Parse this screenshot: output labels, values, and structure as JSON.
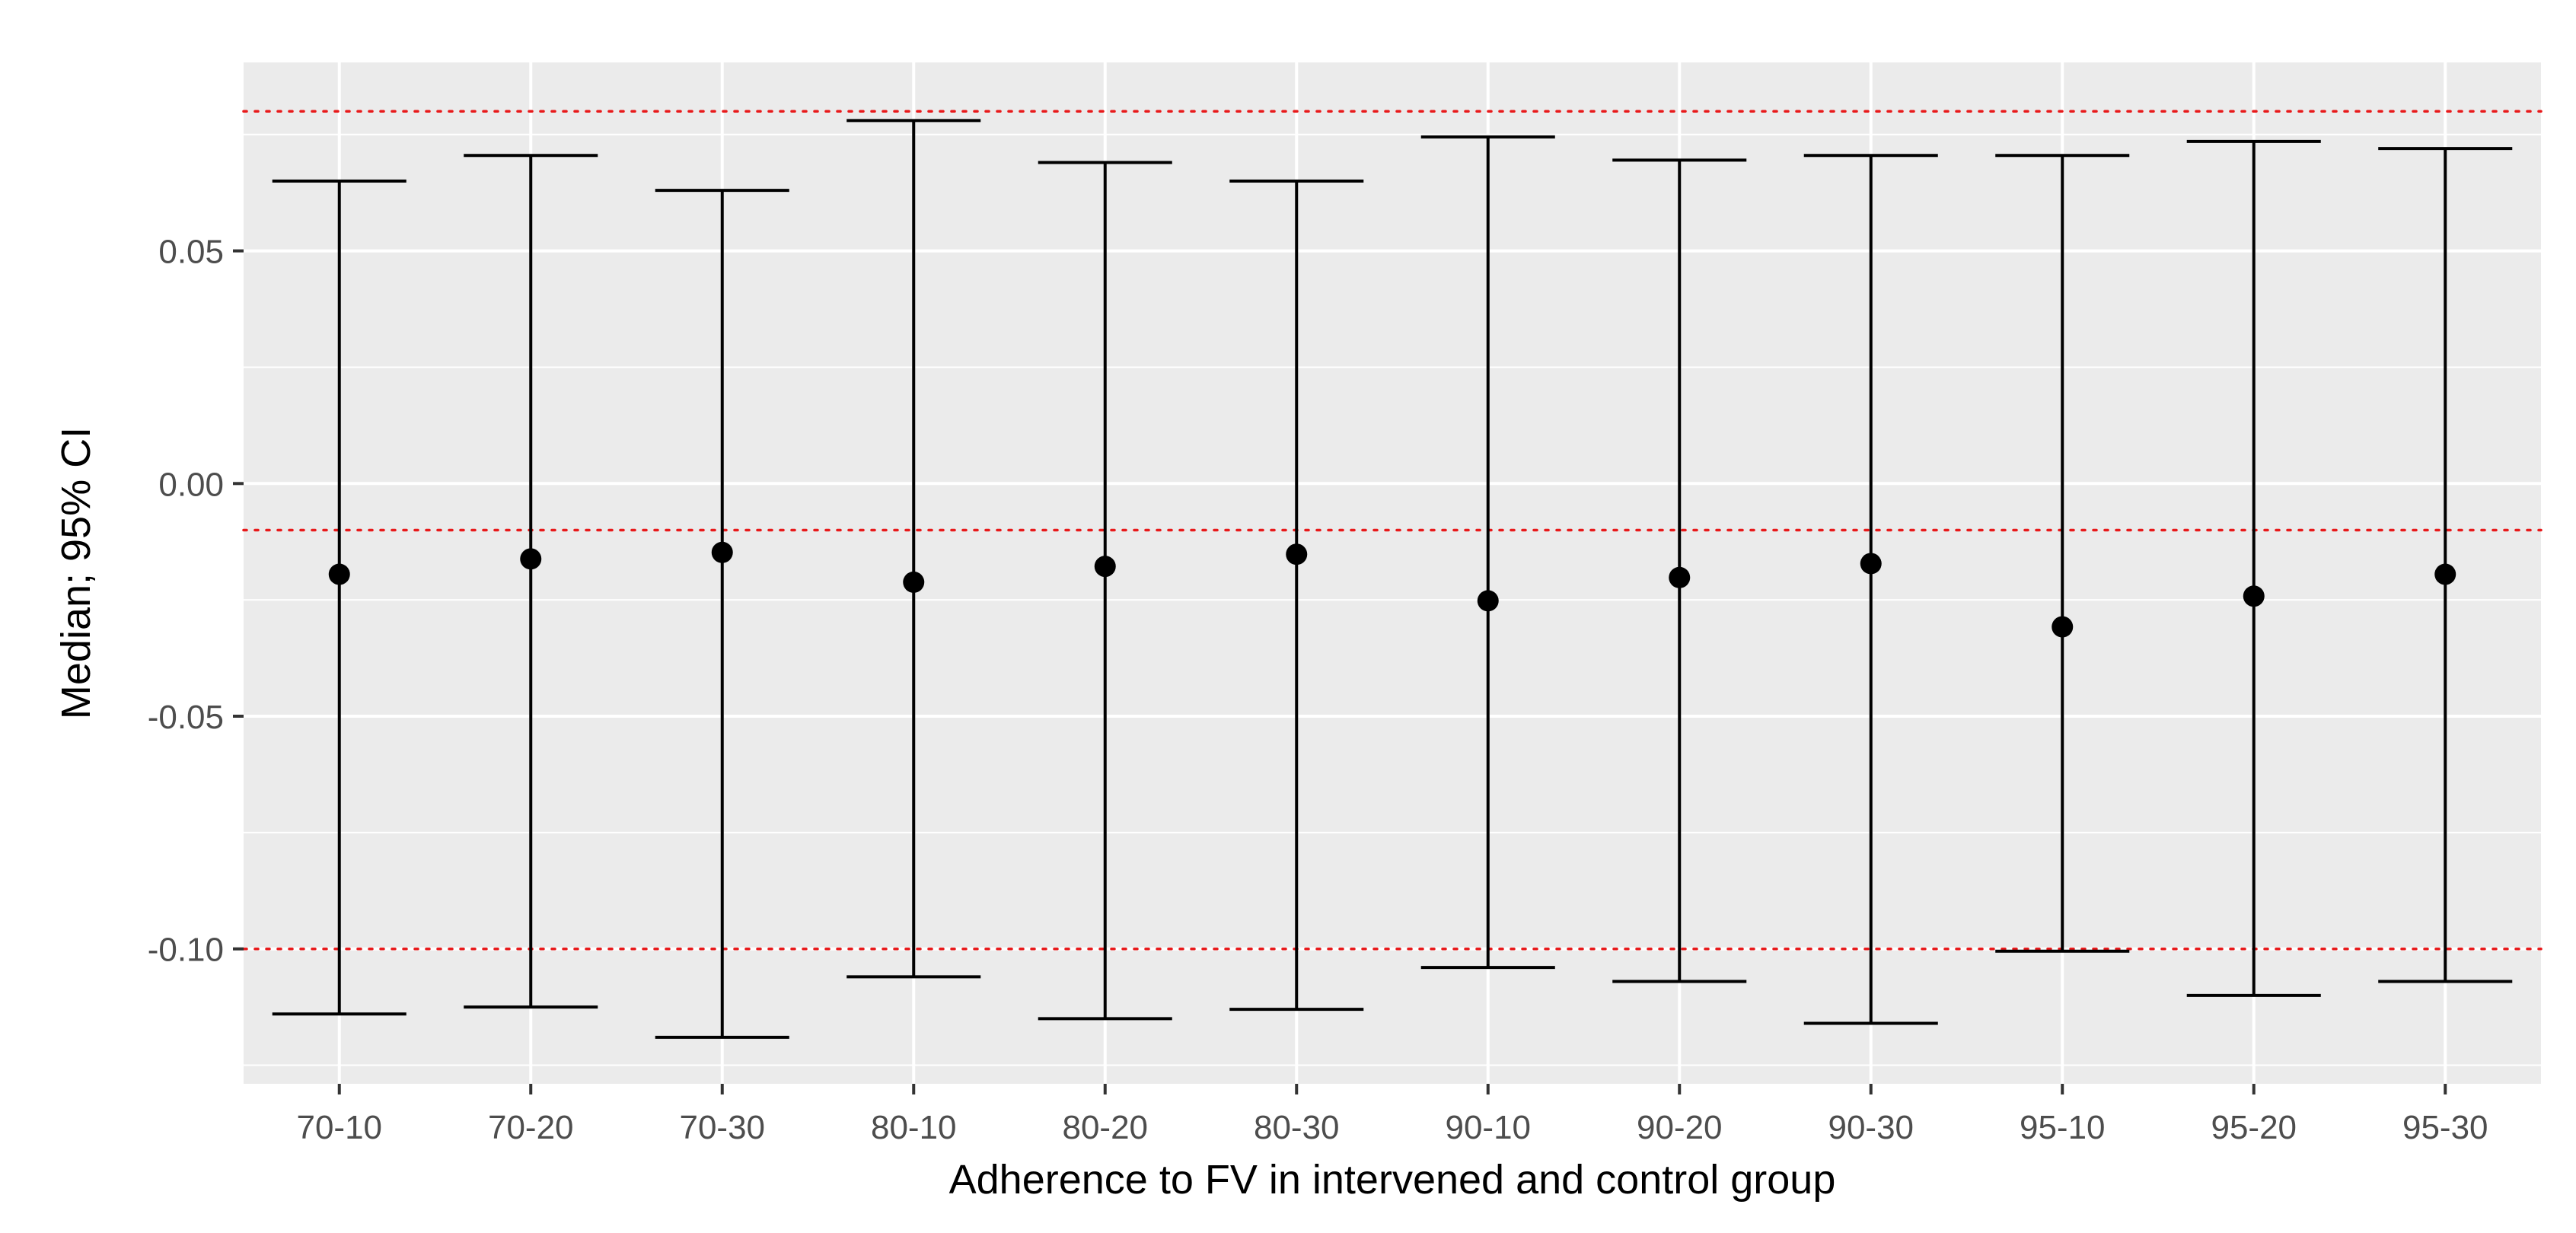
{
  "chart_data": {
    "type": "errorbar",
    "title": "",
    "xlabel": "Adherence to FV in intervened and control group",
    "ylabel": "Median; 95% CI",
    "categories": [
      "70-10",
      "70-20",
      "70-30",
      "80-10",
      "80-20",
      "80-30",
      "90-10",
      "90-20",
      "90-30",
      "95-10",
      "95-20",
      "95-30"
    ],
    "median": [
      -0.0195,
      -0.0162,
      -0.0148,
      -0.0212,
      -0.0178,
      -0.0152,
      -0.0252,
      -0.0202,
      -0.0172,
      -0.0308,
      -0.0242,
      -0.0195
    ],
    "lower": [
      -0.114,
      -0.1125,
      -0.119,
      -0.106,
      -0.115,
      -0.113,
      -0.104,
      -0.107,
      -0.116,
      -0.1005,
      -0.11,
      -0.107
    ],
    "upper": [
      0.065,
      0.0705,
      0.063,
      0.078,
      0.069,
      0.065,
      0.0745,
      0.0695,
      0.0705,
      0.0705,
      0.0735,
      0.072
    ],
    "y_ticks": [
      0.05,
      0.0,
      -0.05,
      -0.1
    ],
    "y_tick_labels": [
      "0.05",
      "0.00",
      "-0.05",
      "-0.10"
    ],
    "ylim": [
      -0.129,
      0.0905
    ],
    "reference_lines": [
      0.08,
      -0.01,
      -0.1
    ],
    "reference_line_style": "dotted",
    "colors": {
      "panel_background": "#ebebeb",
      "grid": "#ffffff",
      "reference_line": "#e8191a",
      "marks": "#000000",
      "tick_label": "#4d4d4d",
      "axis_title": "#000000"
    },
    "grid": true,
    "legend": "none"
  }
}
